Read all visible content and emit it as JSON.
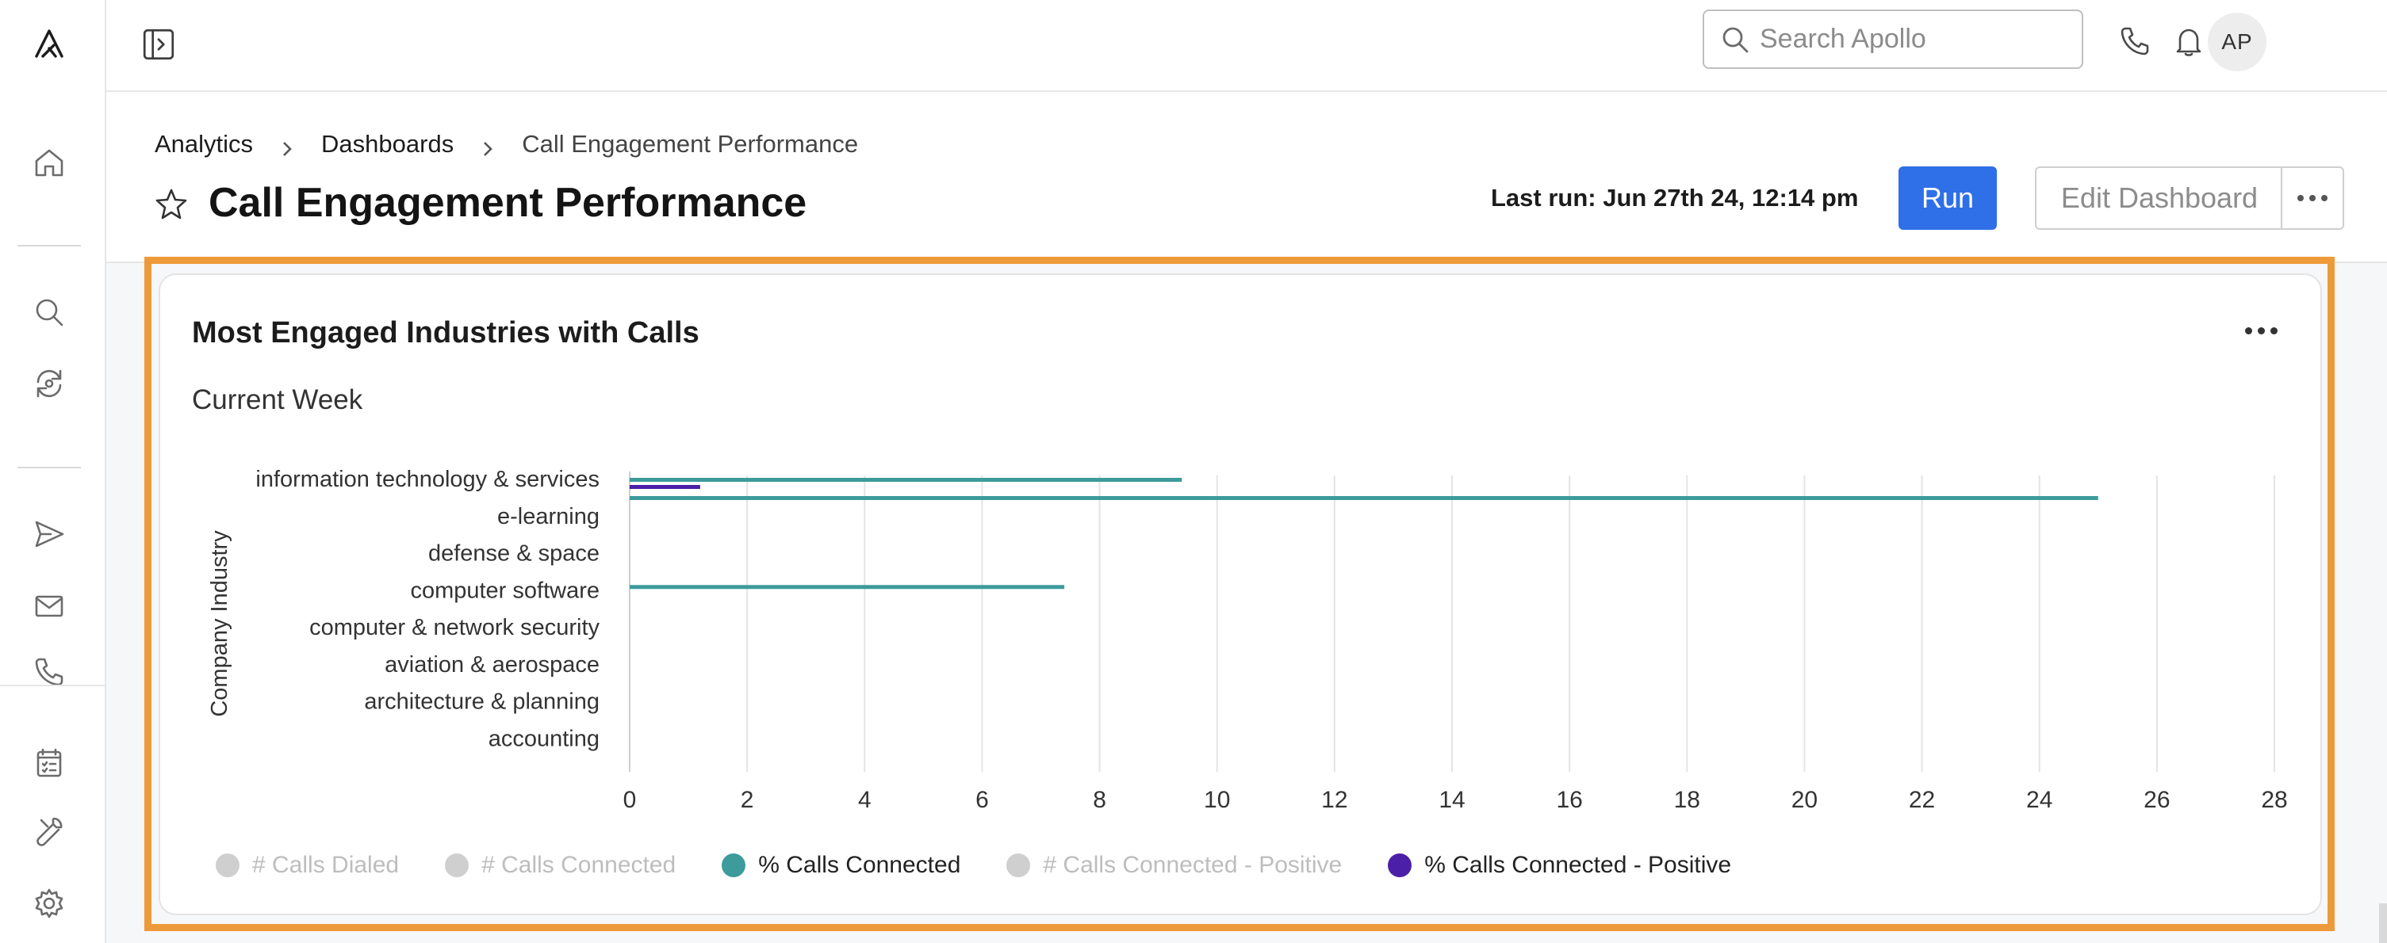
{
  "header": {
    "search_placeholder": "Search Apollo",
    "avatar_initials": "AP"
  },
  "breadcrumb": {
    "items": [
      "Analytics",
      "Dashboards",
      "Call Engagement Performance"
    ]
  },
  "page": {
    "title": "Call Engagement Performance",
    "last_run": "Last run: Jun 27th 24, 12:14 pm",
    "run_label": "Run",
    "edit_label": "Edit Dashboard"
  },
  "card": {
    "title": "Most Engaged Industries with Calls",
    "subtitle": "Current Week"
  },
  "colors": {
    "accent": "#2f6fe8",
    "teal": "#3d9b9b",
    "purple": "#4b1fa8",
    "disabled": "#cfcfcf",
    "highlight": "#ef9a3a"
  },
  "chart_data": {
    "type": "bar",
    "orientation": "horizontal",
    "ylabel": "Company Industry",
    "categories": [
      "information technology & services",
      "e-learning",
      "defense & space",
      "computer software",
      "computer & network security",
      "aviation & aerospace",
      "architecture & planning",
      "accounting"
    ],
    "xlim": [
      0,
      28
    ],
    "xticks": [
      0,
      2,
      4,
      6,
      8,
      10,
      12,
      14,
      16,
      18,
      20,
      22,
      24,
      26,
      28
    ],
    "grid": true,
    "legend_position": "bottom-left",
    "series": [
      {
        "name": "# Calls Dialed",
        "active": false,
        "values": [
          null,
          null,
          null,
          null,
          null,
          null,
          null,
          null
        ]
      },
      {
        "name": "# Calls Connected",
        "active": false,
        "values": [
          null,
          null,
          null,
          null,
          null,
          null,
          null,
          null
        ]
      },
      {
        "name": "% Calls Connected",
        "active": true,
        "values": [
          9.4,
          25,
          0,
          7.4,
          0,
          0,
          0,
          0
        ]
      },
      {
        "name": "# Calls Connected - Positive",
        "active": false,
        "values": [
          null,
          null,
          null,
          null,
          null,
          null,
          null,
          null
        ]
      },
      {
        "name": "% Calls Connected - Positive",
        "active": true,
        "values": [
          1.2,
          0,
          0,
          0,
          0,
          0,
          0,
          0
        ]
      }
    ]
  }
}
